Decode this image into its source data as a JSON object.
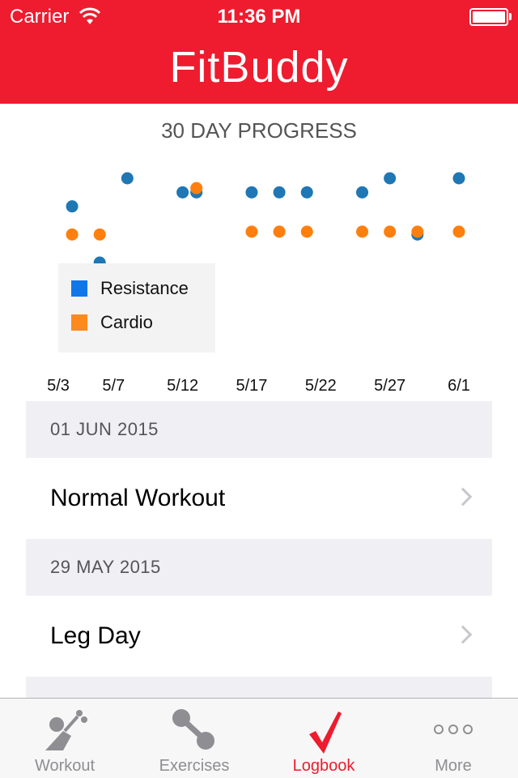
{
  "status_bar": {
    "carrier": "Carrier",
    "time": "11:36 PM",
    "battery_level": 1.0
  },
  "header": {
    "title": "FitBuddy"
  },
  "chart_data": {
    "type": "scatter",
    "title": "30 DAY PROGRESS",
    "x_ticks": [
      "5/3",
      "5/7",
      "5/12",
      "5/17",
      "5/22",
      "5/27",
      "6/1"
    ],
    "x_range": [
      "5/3",
      "6/1"
    ],
    "legend_position": "bottom-left",
    "grid": false,
    "series": [
      {
        "name": "Resistance",
        "color": "#1f77b4",
        "points": [
          {
            "x": "5/4",
            "y": 5
          },
          {
            "x": "5/6",
            "y": 1
          },
          {
            "x": "5/8",
            "y": 7
          },
          {
            "x": "5/12",
            "y": 6
          },
          {
            "x": "5/13",
            "y": 6
          },
          {
            "x": "5/17",
            "y": 6
          },
          {
            "x": "5/19",
            "y": 6
          },
          {
            "x": "5/21",
            "y": 6
          },
          {
            "x": "5/25",
            "y": 6
          },
          {
            "x": "5/27",
            "y": 7
          },
          {
            "x": "5/29",
            "y": 3
          },
          {
            "x": "6/1",
            "y": 7
          }
        ]
      },
      {
        "name": "Cardio",
        "color": "#ff7f0e",
        "points": [
          {
            "x": "5/4",
            "y": 3
          },
          {
            "x": "5/6",
            "y": 3
          },
          {
            "x": "5/13",
            "y": 6.3
          },
          {
            "x": "5/17",
            "y": 3.2
          },
          {
            "x": "5/19",
            "y": 3.2
          },
          {
            "x": "5/21",
            "y": 3.2
          },
          {
            "x": "5/25",
            "y": 3.2
          },
          {
            "x": "5/27",
            "y": 3.2
          },
          {
            "x": "5/29",
            "y": 3.2
          },
          {
            "x": "6/1",
            "y": 3.2
          }
        ]
      }
    ],
    "legend": [
      {
        "name": "Resistance",
        "color": "#1077e8"
      },
      {
        "name": "Cardio",
        "color": "#fd8a1c"
      }
    ]
  },
  "logbook": {
    "entries": [
      {
        "date": "01 JUN 2015",
        "workout": "Normal Workout"
      },
      {
        "date": "29 MAY 2015",
        "workout": "Leg Day"
      }
    ]
  },
  "tab_bar": {
    "tabs": [
      {
        "label": "Workout",
        "icon": "workout-icon",
        "active": false
      },
      {
        "label": "Exercises",
        "icon": "dumbbell-icon",
        "active": false
      },
      {
        "label": "Logbook",
        "icon": "checkmark-icon",
        "active": true
      },
      {
        "label": "More",
        "icon": "more-dots-icon",
        "active": false
      }
    ],
    "active_color": "#ee1c2e",
    "inactive_color": "#8e8e93"
  }
}
